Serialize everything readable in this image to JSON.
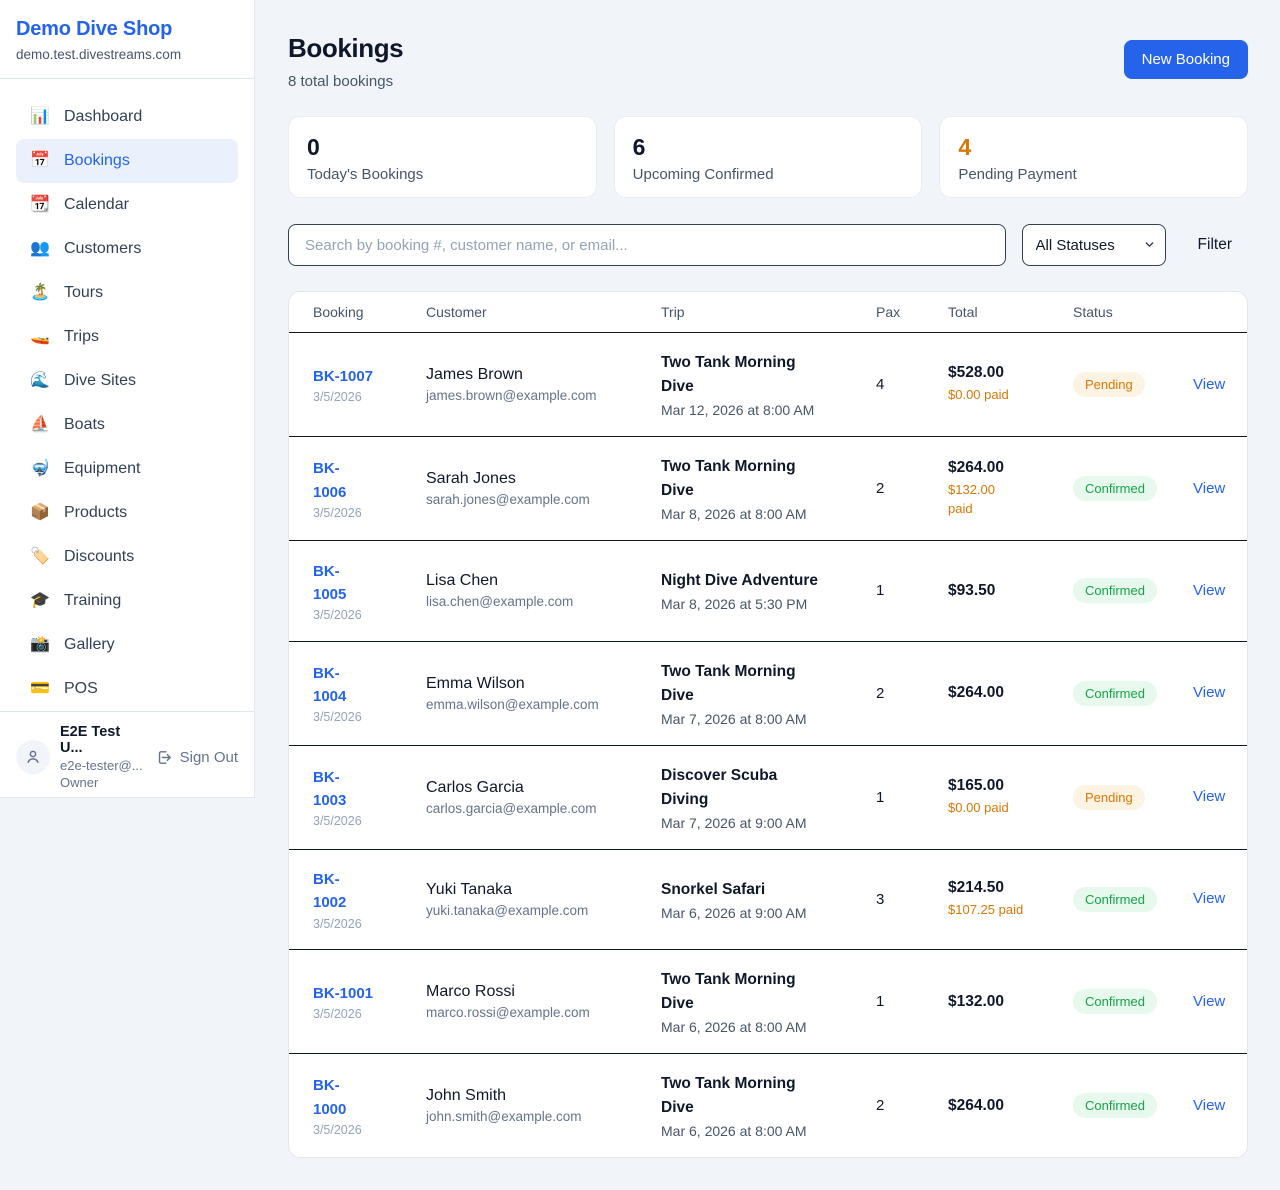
{
  "sidebar": {
    "shop_name": "Demo Dive Shop",
    "shop_domain": "demo.test.divestreams.com",
    "items": [
      {
        "label": "Dashboard",
        "icon": "📊",
        "active": false
      },
      {
        "label": "Bookings",
        "icon": "📅",
        "active": true
      },
      {
        "label": "Calendar",
        "icon": "📆",
        "active": false
      },
      {
        "label": "Customers",
        "icon": "👥",
        "active": false
      },
      {
        "label": "Tours",
        "icon": "🏝️",
        "active": false
      },
      {
        "label": "Trips",
        "icon": "🚤",
        "active": false
      },
      {
        "label": "Dive Sites",
        "icon": "🌊",
        "active": false
      },
      {
        "label": "Boats",
        "icon": "⛵",
        "active": false
      },
      {
        "label": "Equipment",
        "icon": "🤿",
        "active": false
      },
      {
        "label": "Products",
        "icon": "📦",
        "active": false
      },
      {
        "label": "Discounts",
        "icon": "🏷️",
        "active": false
      },
      {
        "label": "Training",
        "icon": "🎓",
        "active": false
      },
      {
        "label": "Gallery",
        "icon": "📸",
        "active": false
      },
      {
        "label": "POS",
        "icon": "💳",
        "active": false
      }
    ],
    "user": {
      "name": "E2E Test U...",
      "email": "e2e-tester@...",
      "role": "Owner",
      "sign_out_label": "Sign Out"
    }
  },
  "header": {
    "title": "Bookings",
    "subtitle": "8 total bookings",
    "new_booking_label": "New Booking"
  },
  "stats": [
    {
      "value": "0",
      "label": "Today's Bookings",
      "color": "#0f172a"
    },
    {
      "value": "6",
      "label": "Upcoming Confirmed",
      "color": "#0f172a"
    },
    {
      "value": "4",
      "label": "Pending Payment",
      "color": "#d97706"
    }
  ],
  "filters": {
    "search_placeholder": "Search by booking #, customer name, or email...",
    "status_selected": "All Statuses",
    "filter_label": "Filter"
  },
  "table": {
    "columns": [
      "Booking",
      "Customer",
      "Trip",
      "Pax",
      "Total",
      "Status"
    ],
    "view_label": "View",
    "rows": [
      {
        "id": "BK-1007",
        "date": "3/5/2026",
        "customer": "James Brown",
        "email": "james.brown@example.com",
        "trip": "Two Tank Morning\nDive",
        "trip_time": "Mar 12, 2026 at 8:00 AM",
        "pax": "4",
        "total": "$528.00",
        "paid": "$0.00 paid",
        "status": "Pending"
      },
      {
        "id": "BK-\n1006",
        "date": "3/5/2026",
        "customer": "Sarah Jones",
        "email": "sarah.jones@example.com",
        "trip": "Two Tank Morning\nDive",
        "trip_time": "Mar 8, 2026 at 8:00 AM",
        "pax": "2",
        "total": "$264.00",
        "paid": "$132.00\npaid",
        "status": "Confirmed"
      },
      {
        "id": "BK-\n1005",
        "date": "3/5/2026",
        "customer": "Lisa Chen",
        "email": "lisa.chen@example.com",
        "trip": "Night Dive Adventure",
        "trip_time": "Mar 8, 2026 at 5:30 PM",
        "pax": "1",
        "total": "$93.50",
        "paid": null,
        "status": "Confirmed"
      },
      {
        "id": "BK-\n1004",
        "date": "3/5/2026",
        "customer": "Emma Wilson",
        "email": "emma.wilson@example.com",
        "trip": "Two Tank Morning\nDive",
        "trip_time": "Mar 7, 2026 at 8:00 AM",
        "pax": "2",
        "total": "$264.00",
        "paid": null,
        "status": "Confirmed"
      },
      {
        "id": "BK-\n1003",
        "date": "3/5/2026",
        "customer": "Carlos Garcia",
        "email": "carlos.garcia@example.com",
        "trip": "Discover Scuba\nDiving",
        "trip_time": "Mar 7, 2026 at 9:00 AM",
        "pax": "1",
        "total": "$165.00",
        "paid": "$0.00 paid",
        "status": "Pending"
      },
      {
        "id": "BK-\n1002",
        "date": "3/5/2026",
        "customer": "Yuki Tanaka",
        "email": "yuki.tanaka@example.com",
        "trip": "Snorkel Safari",
        "trip_time": "Mar 6, 2026 at 9:00 AM",
        "pax": "3",
        "total": "$214.50",
        "paid": "$107.25 paid",
        "status": "Confirmed"
      },
      {
        "id": "BK-1001",
        "date": "3/5/2026",
        "customer": "Marco Rossi",
        "email": "marco.rossi@example.com",
        "trip": "Two Tank Morning\nDive",
        "trip_time": "Mar 6, 2026 at 8:00 AM",
        "pax": "1",
        "total": "$132.00",
        "paid": null,
        "status": "Confirmed"
      },
      {
        "id": "BK-\n1000",
        "date": "3/5/2026",
        "customer": "John Smith",
        "email": "john.smith@example.com",
        "trip": "Two Tank Morning\nDive",
        "trip_time": "Mar 6, 2026 at 8:00 AM",
        "pax": "2",
        "total": "$264.00",
        "paid": null,
        "status": "Confirmed"
      }
    ]
  },
  "colors": {
    "accent_blue": "#2563eb",
    "pending_orange": "#d97706",
    "confirmed_green": "#16a34a",
    "dark_text": "#0f172a"
  }
}
